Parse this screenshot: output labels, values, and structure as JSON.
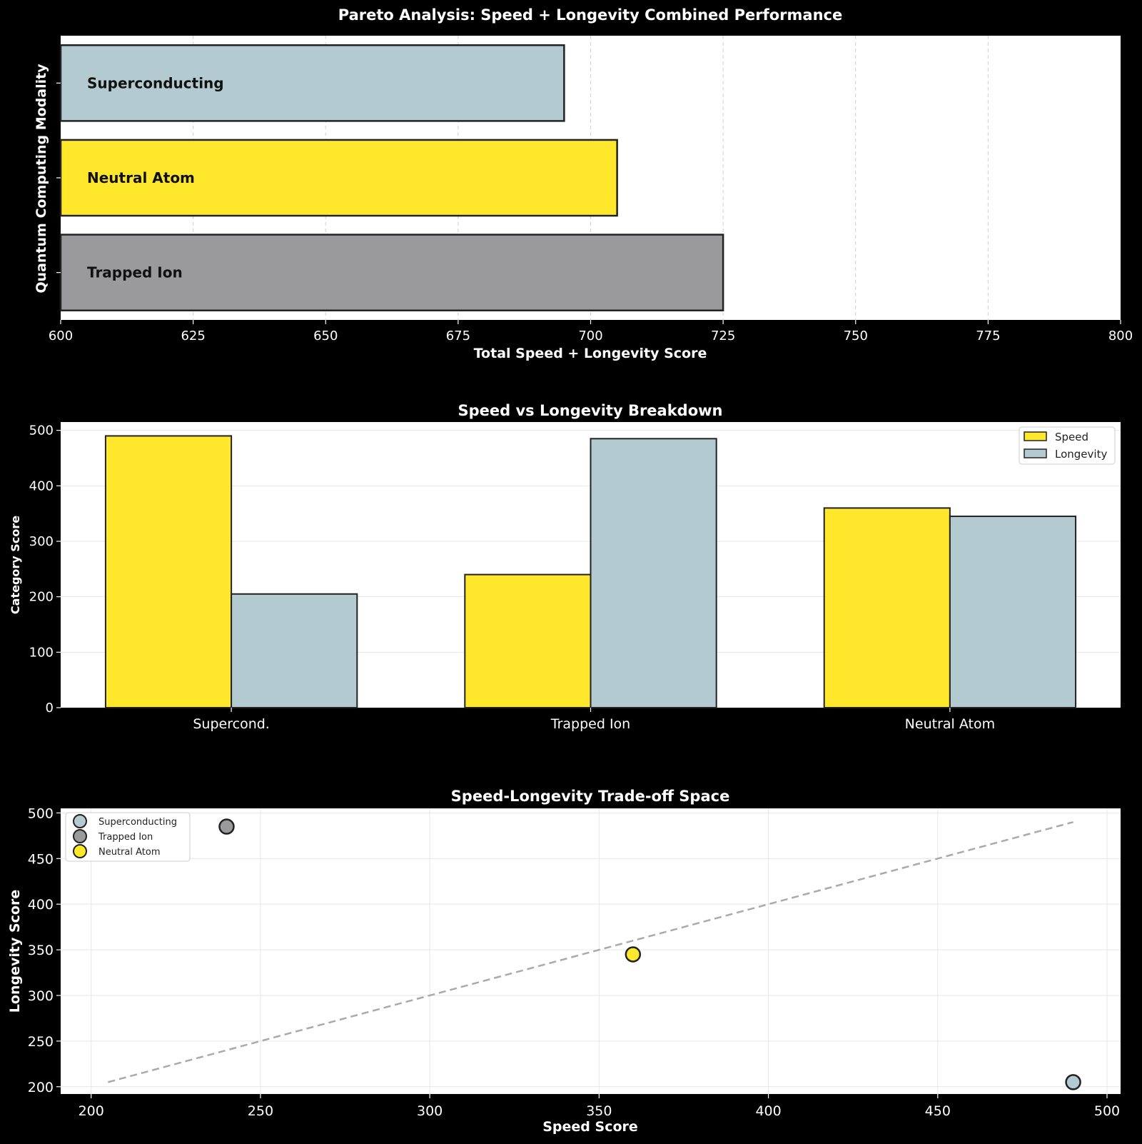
{
  "chart_data": [
    {
      "type": "bar",
      "orientation": "horizontal",
      "title": "Pareto Analysis: Speed + Longevity Combined Performance",
      "xlabel": "Total Speed + Longevity Score",
      "ylabel": "Quantum Computing Modality",
      "xlim": [
        600,
        800
      ],
      "xticks": [
        "600",
        "625",
        "650",
        "675",
        "700",
        "725",
        "750",
        "775",
        "800"
      ],
      "grid": "x-dashed",
      "categories": [
        "Superconducting",
        "Neutral Atom",
        "Trapped Ion"
      ],
      "values": [
        695,
        705,
        725
      ],
      "colors": [
        "#b3cbd0",
        "#ffe82b",
        "#9a999b"
      ]
    },
    {
      "type": "bar",
      "title": "Speed vs Longevity Breakdown",
      "xlabel": "",
      "ylabel": "Category Score",
      "ylim": [
        0,
        515
      ],
      "yticks": [
        "0",
        "100",
        "200",
        "300",
        "400",
        "500"
      ],
      "grid": "both",
      "legend_position": "top-right",
      "categories": [
        "Supercond.",
        "Trapped Ion",
        "Neutral Atom"
      ],
      "series": [
        {
          "name": "Speed",
          "values": [
            490,
            240,
            360
          ],
          "color": "#ffe82b"
        },
        {
          "name": "Longevity",
          "values": [
            205,
            485,
            345
          ],
          "color": "#b3cbd0"
        }
      ]
    },
    {
      "type": "scatter",
      "title": "Speed-Longevity Trade-off Space",
      "xlabel": "Speed Score",
      "ylabel": "Longevity Score",
      "xlim": [
        191,
        504
      ],
      "ylim": [
        192,
        505
      ],
      "xticks": [
        "200",
        "250",
        "300",
        "350",
        "400",
        "450",
        "500"
      ],
      "yticks": [
        "200",
        "250",
        "300",
        "350",
        "400",
        "450",
        "500"
      ],
      "grid": "both",
      "legend_position": "top-left",
      "series": [
        {
          "name": "Superconducting",
          "x": [
            490
          ],
          "y": [
            205
          ],
          "color": "#b3cbd0"
        },
        {
          "name": "Trapped Ion",
          "x": [
            240
          ],
          "y": [
            485
          ],
          "color": "#9a999b"
        },
        {
          "name": "Neutral Atom",
          "x": [
            360
          ],
          "y": [
            345
          ],
          "color": "#ffe82b"
        }
      ],
      "reference_line": {
        "x": [
          205,
          490
        ],
        "y": [
          205,
          490
        ],
        "style": "dashed",
        "color": "#aaaaaa"
      }
    }
  ]
}
